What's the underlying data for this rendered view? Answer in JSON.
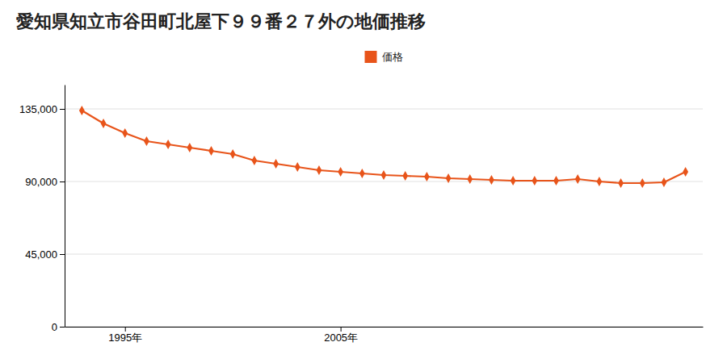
{
  "chart_data": {
    "type": "line",
    "title": "愛知県知立市谷田町北屋下９９番２７外の地価推移",
    "x": [
      1993,
      1994,
      1995,
      1996,
      1997,
      1998,
      1999,
      2000,
      2001,
      2002,
      2003,
      2004,
      2005,
      2006,
      2007,
      2008,
      2009,
      2010,
      2011,
      2012,
      2013,
      2014,
      2015,
      2016,
      2017,
      2018,
      2019,
      2020,
      2021
    ],
    "series": [
      {
        "name": "価格",
        "color": "#E8541A",
        "marker": "diamond",
        "values": [
          134000,
          126000,
          120000,
          115000,
          113000,
          111000,
          109000,
          107000,
          103000,
          101000,
          99000,
          97000,
          96000,
          95000,
          94000,
          93500,
          93000,
          92000,
          91500,
          91000,
          90500,
          90500,
          90500,
          91500,
          90000,
          89000,
          89000,
          89500,
          96000
        ]
      }
    ],
    "xlim": [
      1992.2,
      2021.8
    ],
    "xticks": [
      {
        "value": 1995,
        "label": "1995年"
      },
      {
        "value": 2005,
        "label": "2005年"
      }
    ],
    "ylim": [
      0,
      150000
    ],
    "yticks": [
      0,
      {
        "value": 45000,
        "label": "45,000"
      },
      {
        "value": 90000,
        "label": "90,000"
      },
      {
        "value": 135000,
        "label": "135,000"
      }
    ],
    "grid": true,
    "legend": "top"
  }
}
